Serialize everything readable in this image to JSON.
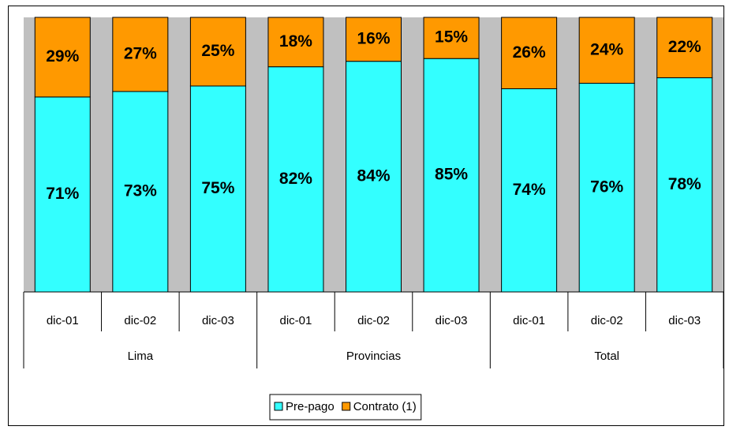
{
  "chart_data": {
    "type": "stacked_bar",
    "categories": [
      "dic-01",
      "dic-02",
      "dic-03",
      "dic-01",
      "dic-02",
      "dic-03",
      "dic-01",
      "dic-02",
      "dic-03"
    ],
    "groups": [
      "Lima",
      "Provincias",
      "Total"
    ],
    "ylim": [
      0,
      100
    ],
    "series": [
      {
        "name": "Pre-pago",
        "color": "#33ffff",
        "values": [
          71,
          73,
          75,
          82,
          84,
          85,
          74,
          76,
          78
        ],
        "value_labels": [
          "71%",
          "73%",
          "75%",
          "82%",
          "84%",
          "85%",
          "74%",
          "76%",
          "78%"
        ]
      },
      {
        "name": "Contrato (1)",
        "color": "#ff9900",
        "values": [
          29,
          27,
          25,
          18,
          16,
          15,
          26,
          24,
          22
        ],
        "value_labels": [
          "29%",
          "27%",
          "25%",
          "18%",
          "16%",
          "15%",
          "26%",
          "24%",
          "22%"
        ]
      }
    ],
    "legend": "bottom"
  }
}
